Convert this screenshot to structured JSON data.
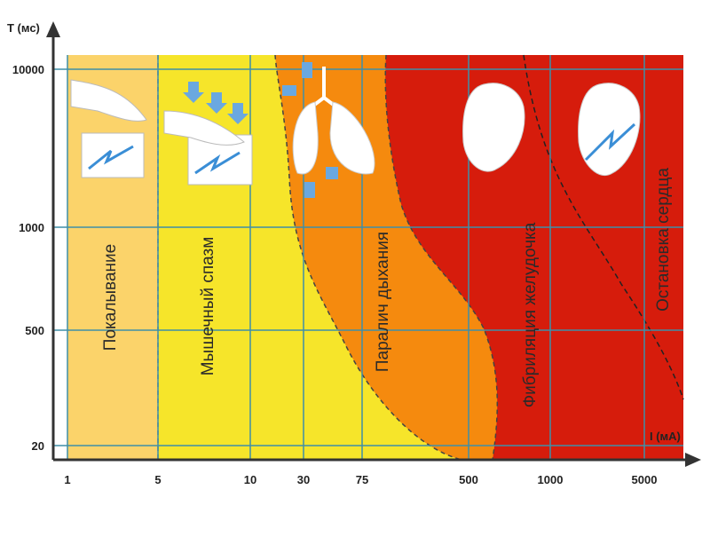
{
  "axes": {
    "y_label": "T (мс)",
    "x_label": "I (мА)",
    "y_ticks": [
      "10000",
      "1000",
      "500",
      "20"
    ],
    "x_ticks": [
      "1",
      "5",
      "10",
      "30",
      "75",
      "500",
      "1000",
      "5000"
    ]
  },
  "zones": [
    {
      "label": "Покалывание"
    },
    {
      "label": "Мышечный спазм"
    },
    {
      "label": "Паралич дыхания"
    },
    {
      "label": "Фибриляция желудочка"
    },
    {
      "label": "Остановка сердца"
    }
  ]
}
